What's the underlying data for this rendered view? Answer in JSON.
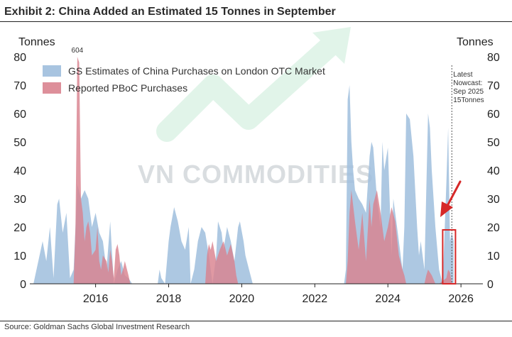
{
  "title": "Exhibit 2: China Added an Estimated 15 Tonnes in September",
  "source": "Source: Goldman Sachs Global Investment Research",
  "watermark": "VN COMMODITIES",
  "colors": {
    "gs": "#9fbedd",
    "pboc": "#d9838f",
    "highlight": "#d62828",
    "text": "#222222"
  },
  "chart_data": {
    "type": "area",
    "title": "Exhibit 2: China Added an Estimated 15 Tonnes in September",
    "ylabel_left": "Tonnes",
    "ylabel_right": "Tonnes",
    "ylim": [
      0,
      80
    ],
    "yticks": [
      0,
      10,
      20,
      30,
      40,
      50,
      60,
      70,
      80
    ],
    "xlim": [
      2014.2,
      2026.6
    ],
    "xticks": [
      2016,
      2018,
      2020,
      2022,
      2024,
      2026
    ],
    "legend_position": "top-left",
    "series": [
      {
        "name": "GS Estimates of China Purchases on London OTC Market",
        "color": "#9fbedd",
        "x": [
          2014.3,
          2014.55,
          2014.65,
          2014.75,
          2014.85,
          2014.95,
          2015.0,
          2015.1,
          2015.2,
          2015.3,
          2015.4,
          2015.5,
          2015.6,
          2015.7,
          2015.8,
          2015.9,
          2016.0,
          2016.1,
          2016.2,
          2016.3,
          2016.4,
          2016.5,
          2016.6,
          2016.7,
          2016.8,
          2016.9,
          2017.0,
          2017.1,
          2017.5,
          2017.7,
          2017.75,
          2017.8,
          2017.9,
          2018.0,
          2018.05,
          2018.15,
          2018.25,
          2018.35,
          2018.45,
          2018.55,
          2018.6,
          2018.7,
          2018.8,
          2018.9,
          2019.0,
          2019.1,
          2019.2,
          2019.3,
          2019.35,
          2019.45,
          2019.5,
          2019.6,
          2019.7,
          2019.8,
          2019.9,
          2019.95,
          2020.05,
          2020.1,
          2020.2,
          2020.3,
          2022.8,
          2022.85,
          2022.9,
          2022.95,
          2023.0,
          2023.05,
          2023.1,
          2023.2,
          2023.3,
          2023.4,
          2023.5,
          2023.55,
          2023.6,
          2023.7,
          2023.8,
          2023.85,
          2023.9,
          2024.0,
          2024.1,
          2024.15,
          2024.2,
          2024.3,
          2024.4,
          2024.45,
          2024.5,
          2024.6,
          2024.7,
          2024.8,
          2024.85,
          2024.9,
          2025.0,
          2025.1,
          2025.15,
          2025.2,
          2025.3,
          2025.4,
          2025.5,
          2025.6,
          2025.65,
          2025.7,
          2025.75,
          2025.8
        ],
        "values": [
          0,
          15,
          8,
          20,
          2,
          28,
          30,
          18,
          25,
          2,
          5,
          35,
          30,
          33,
          30,
          20,
          25,
          18,
          15,
          5,
          22,
          0,
          5,
          8,
          3,
          2,
          0,
          0,
          0,
          0,
          5,
          2,
          0,
          15,
          20,
          27,
          22,
          15,
          12,
          20,
          0,
          5,
          15,
          20,
          18,
          10,
          0,
          10,
          22,
          18,
          12,
          20,
          15,
          8,
          20,
          22,
          15,
          10,
          5,
          0,
          0,
          5,
          65,
          70,
          50,
          40,
          33,
          30,
          28,
          25,
          45,
          50,
          48,
          30,
          20,
          50,
          40,
          48,
          10,
          30,
          25,
          15,
          5,
          20,
          60,
          58,
          45,
          20,
          10,
          15,
          5,
          60,
          55,
          40,
          20,
          5,
          0,
          35,
          55,
          15,
          18,
          15
        ]
      },
      {
        "name": "Reported PBoC Purchases",
        "color": "#d9838f",
        "x": [
          2015.4,
          2015.45,
          2015.5,
          2015.55,
          2015.6,
          2015.65,
          2015.7,
          2015.75,
          2015.8,
          2015.85,
          2015.9,
          2016.0,
          2016.05,
          2016.1,
          2016.15,
          2016.2,
          2016.3,
          2016.35,
          2016.4,
          2016.45,
          2016.5,
          2016.55,
          2016.6,
          2016.65,
          2016.7,
          2016.75,
          2016.8,
          2016.9,
          2016.95,
          2019.0,
          2019.05,
          2019.1,
          2019.15,
          2019.2,
          2019.3,
          2019.4,
          2019.5,
          2019.6,
          2019.7,
          2019.8,
          2019.85,
          2019.9,
          2022.85,
          2022.9,
          2022.95,
          2023.0,
          2023.1,
          2023.2,
          2023.3,
          2023.4,
          2023.5,
          2023.55,
          2023.6,
          2023.7,
          2023.8,
          2023.9,
          2024.0,
          2024.1,
          2024.2,
          2024.3,
          2024.4,
          2024.45,
          2024.5,
          2024.6,
          2024.7,
          2024.8,
          2024.9,
          2025.0,
          2025.05,
          2025.1,
          2025.2,
          2025.3,
          2025.4,
          2025.5,
          2025.6,
          2025.65,
          2025.7,
          2025.75
        ],
        "values": [
          0,
          20,
          80,
          78,
          30,
          25,
          15,
          20,
          22,
          18,
          10,
          12,
          20,
          8,
          5,
          10,
          8,
          4,
          12,
          8,
          2,
          12,
          14,
          10,
          3,
          5,
          8,
          3,
          0,
          0,
          10,
          14,
          12,
          15,
          8,
          12,
          15,
          10,
          14,
          8,
          3,
          0,
          0,
          8,
          25,
          33,
          22,
          12,
          25,
          8,
          30,
          20,
          28,
          33,
          25,
          15,
          20,
          27,
          22,
          10,
          5,
          3,
          0,
          0,
          0,
          0,
          0,
          0,
          3,
          5,
          3,
          0,
          0,
          1,
          2,
          5,
          4,
          0
        ]
      }
    ],
    "annotations": [
      {
        "text": "604",
        "x": 2015.5,
        "y": 80
      },
      {
        "lines": [
          "Latest",
          "Nowcast:",
          "Sep 2025",
          "15Tonnes"
        ],
        "x": 2025.75
      }
    ],
    "highlight": {
      "x0": 2025.5,
      "x1": 2025.85,
      "y0": 0,
      "y1": 19
    }
  }
}
